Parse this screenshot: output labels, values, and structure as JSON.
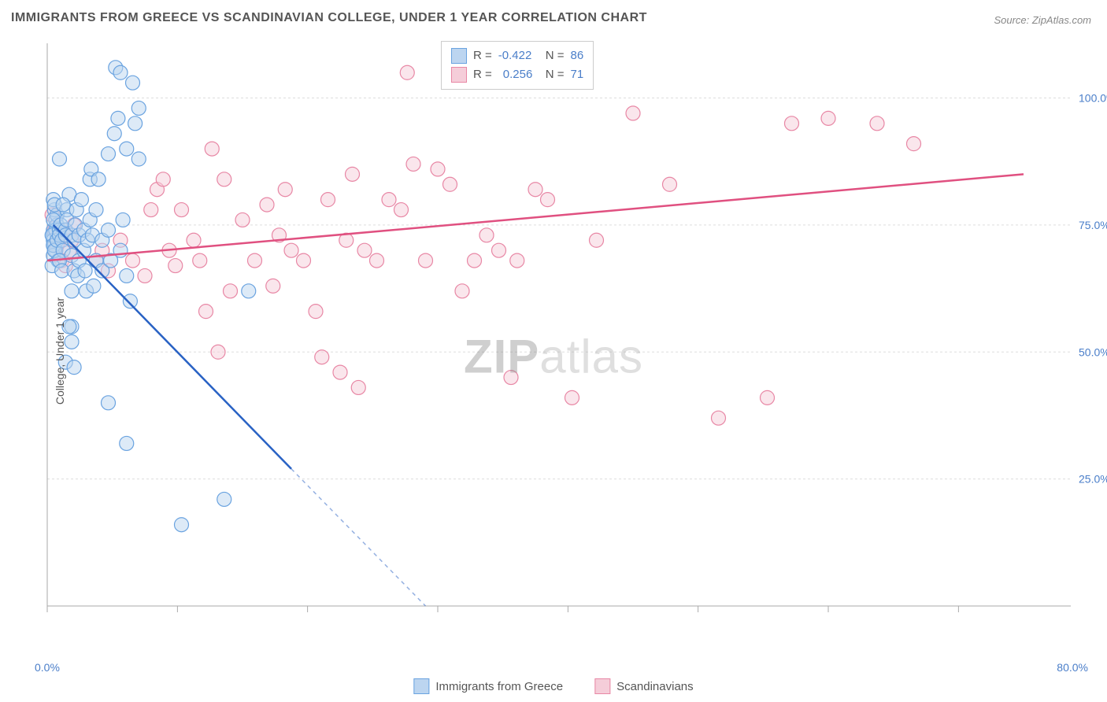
{
  "title": "IMMIGRANTS FROM GREECE VS SCANDINAVIAN COLLEGE, UNDER 1 YEAR CORRELATION CHART",
  "source": "Source: ZipAtlas.com",
  "ylabel": "College, Under 1 year",
  "watermark_bold": "ZIP",
  "watermark_light": "atlas",
  "chart": {
    "type": "scatter",
    "xlim": [
      0,
      80
    ],
    "ylim": [
      0,
      110
    ],
    "xtick_labels": [
      "0.0%",
      "80.0%"
    ],
    "ytick_labels": [
      "25.0%",
      "50.0%",
      "75.0%",
      "100.0%"
    ],
    "ytick_values": [
      25,
      50,
      75,
      100
    ],
    "xtick_positions": [
      0,
      10.67,
      21.33,
      32,
      42.67,
      53.33,
      64,
      74.67
    ],
    "background_color": "#ffffff",
    "grid_color": "#dddddd",
    "axis_color": "#aaaaaa",
    "tick_label_color": "#4a7ec9",
    "axis_label_color": "#555555",
    "title_color": "#555555",
    "title_fontsize": 16,
    "label_fontsize": 14
  },
  "series": [
    {
      "name": "Immigrants from Greece",
      "color_fill": "#bcd5f0",
      "color_stroke": "#6aa3e0",
      "line_color": "#2962c4",
      "marker_radius": 9,
      "fill_opacity": 0.5,
      "R": "-0.422",
      "N": "86",
      "regression": {
        "x1": 0.5,
        "y1": 75,
        "x2": 20,
        "y2": 27,
        "x2_dash": 31,
        "y2_dash": 0
      },
      "points": [
        [
          0.5,
          74
        ],
        [
          0.5,
          73
        ],
        [
          0.7,
          76
        ],
        [
          0.8,
          75
        ],
        [
          0.5,
          72
        ],
        [
          0.6,
          71
        ],
        [
          0.7,
          70
        ],
        [
          0.5,
          69
        ],
        [
          0.9,
          68
        ],
        [
          0.4,
          67
        ],
        [
          0.6,
          78
        ],
        [
          0.5,
          80
        ],
        [
          0.8,
          77
        ],
        [
          0.6,
          79
        ],
        [
          0.7,
          74
        ],
        [
          0.4,
          73
        ],
        [
          0.5,
          76
        ],
        [
          0.5,
          71
        ],
        [
          0.6,
          70
        ],
        [
          0.8,
          72
        ],
        [
          1.0,
          74
        ],
        [
          1.0,
          73
        ],
        [
          1.1,
          75
        ],
        [
          1.2,
          72
        ],
        [
          1.3,
          70
        ],
        [
          1.0,
          68
        ],
        [
          1.2,
          66
        ],
        [
          1.5,
          74
        ],
        [
          1.5,
          73
        ],
        [
          1.6,
          78
        ],
        [
          1.8,
          81
        ],
        [
          1.6,
          76
        ],
        [
          1.3,
          79
        ],
        [
          2.0,
          73
        ],
        [
          2.0,
          69
        ],
        [
          2.2,
          66
        ],
        [
          2.0,
          62
        ],
        [
          2.2,
          72
        ],
        [
          2.3,
          75
        ],
        [
          2.4,
          78
        ],
        [
          2.6,
          73
        ],
        [
          2.6,
          68
        ],
        [
          2.5,
          65
        ],
        [
          2.8,
          80
        ],
        [
          3.0,
          74
        ],
        [
          3.0,
          70
        ],
        [
          3.1,
          66
        ],
        [
          3.2,
          62
        ],
        [
          3.3,
          72
        ],
        [
          3.5,
          76
        ],
        [
          3.5,
          84
        ],
        [
          3.6,
          86
        ],
        [
          3.7,
          73
        ],
        [
          4.0,
          68
        ],
        [
          4.0,
          78
        ],
        [
          4.2,
          84
        ],
        [
          4.5,
          72
        ],
        [
          4.5,
          66
        ],
        [
          5.0,
          89
        ],
        [
          5.0,
          74
        ],
        [
          5.2,
          68
        ],
        [
          5.5,
          93
        ],
        [
          5.6,
          106
        ],
        [
          5.8,
          96
        ],
        [
          6.0,
          105
        ],
        [
          6.0,
          70
        ],
        [
          6.2,
          76
        ],
        [
          6.5,
          90
        ],
        [
          6.5,
          65
        ],
        [
          6.8,
          60
        ],
        [
          7.0,
          103
        ],
        [
          7.2,
          95
        ],
        [
          7.5,
          98
        ],
        [
          7.5,
          88
        ],
        [
          1.0,
          88
        ],
        [
          2.0,
          55
        ],
        [
          2.0,
          52
        ],
        [
          1.5,
          48
        ],
        [
          2.2,
          47
        ],
        [
          1.8,
          55
        ],
        [
          5.0,
          40
        ],
        [
          6.5,
          32
        ],
        [
          11.0,
          16
        ],
        [
          14.5,
          21
        ],
        [
          16.5,
          62
        ],
        [
          3.8,
          63
        ]
      ]
    },
    {
      "name": "Scandinavians",
      "color_fill": "#f5cdd9",
      "color_stroke": "#e887a5",
      "line_color": "#e05080",
      "marker_radius": 9,
      "fill_opacity": 0.5,
      "R": "0.256",
      "N": "71",
      "regression": {
        "x1": 0,
        "y1": 68,
        "x2": 80,
        "y2": 85
      },
      "points": [
        [
          1.0,
          73
        ],
        [
          1.5,
          74
        ],
        [
          1.8,
          70
        ],
        [
          2.0,
          72
        ],
        [
          2.2,
          75
        ],
        [
          0.4,
          77
        ],
        [
          0.6,
          74
        ],
        [
          0.8,
          71
        ],
        [
          1.2,
          68
        ],
        [
          1.5,
          67
        ],
        [
          4.0,
          68
        ],
        [
          4.5,
          70
        ],
        [
          5.0,
          66
        ],
        [
          6.0,
          72
        ],
        [
          7.0,
          68
        ],
        [
          8.0,
          65
        ],
        [
          9.0,
          82
        ],
        [
          9.5,
          84
        ],
        [
          10.0,
          70
        ],
        [
          10.5,
          67
        ],
        [
          11.0,
          78
        ],
        [
          12.0,
          72
        ],
        [
          12.5,
          68
        ],
        [
          13.0,
          58
        ],
        [
          14.0,
          50
        ],
        [
          14.5,
          84
        ],
        [
          15.0,
          62
        ],
        [
          16.0,
          76
        ],
        [
          17.0,
          68
        ],
        [
          18.0,
          79
        ],
        [
          18.5,
          63
        ],
        [
          19.0,
          73
        ],
        [
          19.5,
          82
        ],
        [
          20.0,
          70
        ],
        [
          21.0,
          68
        ],
        [
          22.0,
          58
        ],
        [
          22.5,
          49
        ],
        [
          23.0,
          80
        ],
        [
          24.0,
          46
        ],
        [
          24.5,
          72
        ],
        [
          25.0,
          85
        ],
        [
          25.5,
          43
        ],
        [
          26.0,
          70
        ],
        [
          27.0,
          68
        ],
        [
          28.0,
          80
        ],
        [
          29.0,
          78
        ],
        [
          29.5,
          105
        ],
        [
          30.0,
          87
        ],
        [
          31.0,
          68
        ],
        [
          32.0,
          86
        ],
        [
          33.0,
          83
        ],
        [
          34.0,
          62
        ],
        [
          35.0,
          68
        ],
        [
          36.0,
          73
        ],
        [
          37.0,
          70
        ],
        [
          38.0,
          45
        ],
        [
          38.5,
          68
        ],
        [
          40.0,
          82
        ],
        [
          41.0,
          80
        ],
        [
          43.0,
          41
        ],
        [
          45.0,
          72
        ],
        [
          48.0,
          97
        ],
        [
          51.0,
          83
        ],
        [
          55.0,
          37
        ],
        [
          59.0,
          41
        ],
        [
          61.0,
          95
        ],
        [
          64.0,
          96
        ],
        [
          68.0,
          95
        ],
        [
          71.0,
          91
        ],
        [
          13.5,
          90
        ],
        [
          8.5,
          78
        ]
      ]
    }
  ],
  "legend_top_labels": {
    "R_label": "R =",
    "N_label": "N ="
  },
  "legend_bottom": [
    "Immigrants from Greece",
    "Scandinavians"
  ]
}
